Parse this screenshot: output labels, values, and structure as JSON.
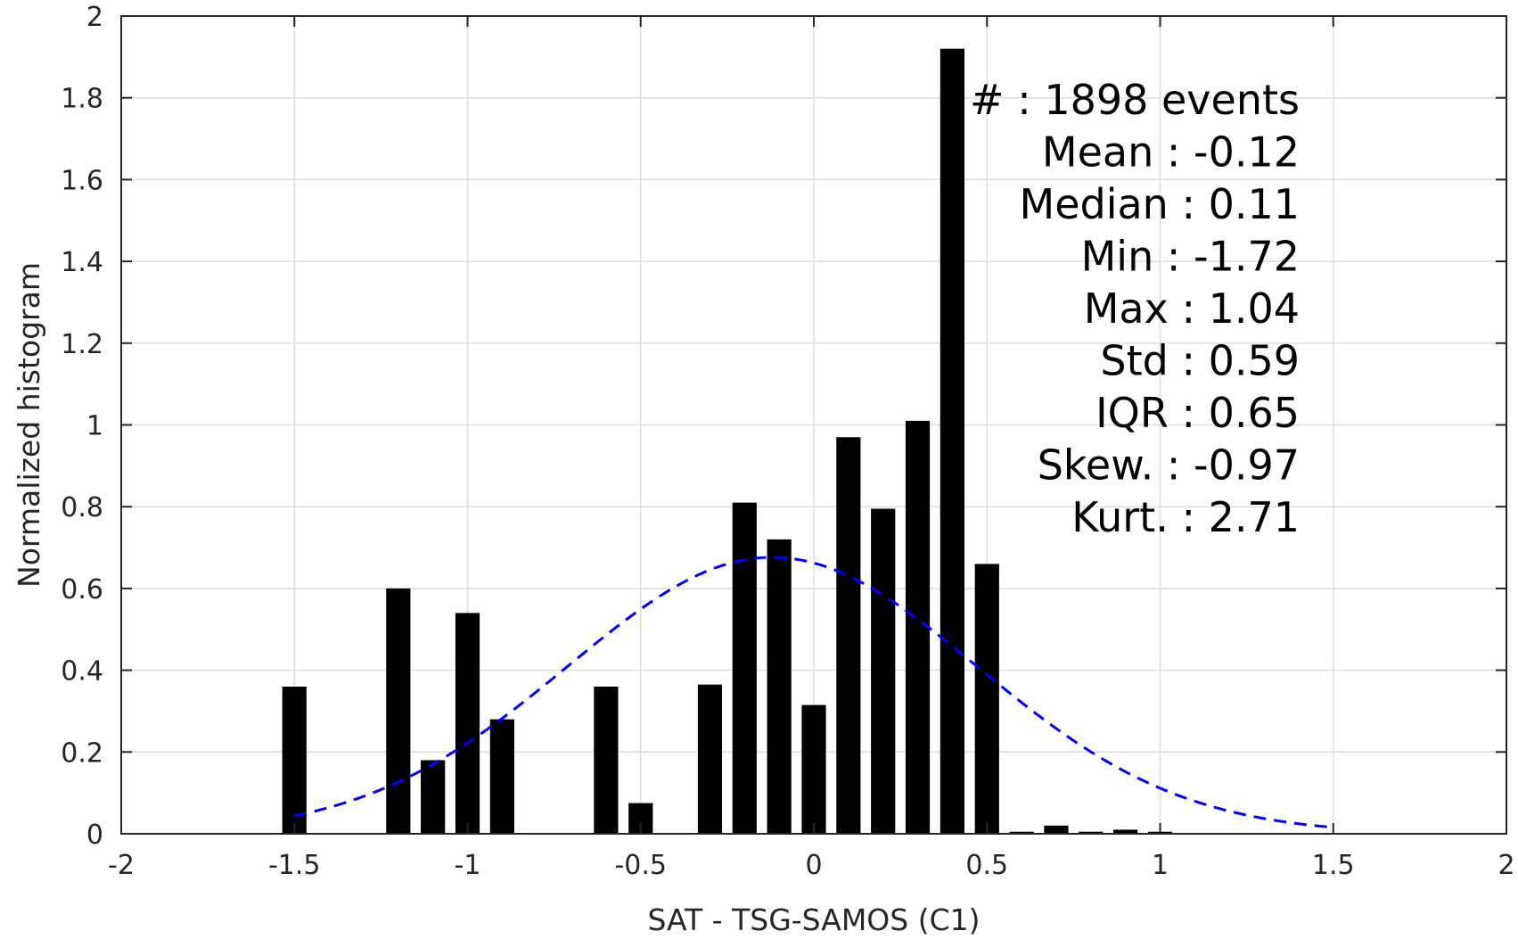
{
  "chart_data": {
    "type": "bar",
    "xlabel": "SAT - TSG-SAMOS (C1)",
    "ylabel": "Normalized histogram",
    "xlim": [
      -2,
      2
    ],
    "ylim": [
      0,
      2
    ],
    "xticks": [
      -2,
      -1.5,
      -1,
      -0.5,
      0,
      0.5,
      1,
      1.5,
      2
    ],
    "xtick_labels": [
      "-2",
      "-1.5",
      "-1",
      "-0.5",
      "0",
      "0.5",
      "1",
      "1.5",
      "2"
    ],
    "yticks": [
      0,
      0.2,
      0.4,
      0.6,
      0.8,
      1,
      1.2,
      1.4,
      1.6,
      1.8,
      2
    ],
    "ytick_labels": [
      "0",
      "0.2",
      "0.4",
      "0.6",
      "0.8",
      "1",
      "1.2",
      "1.4",
      "1.6",
      "1.8",
      "2"
    ],
    "grid": true,
    "bar_width": 0.07,
    "bar_color": "#000000",
    "bins": [
      {
        "x": -1.5,
        "y": 0.36
      },
      {
        "x": -1.2,
        "y": 0.6
      },
      {
        "x": -1.1,
        "y": 0.18
      },
      {
        "x": -1.0,
        "y": 0.54
      },
      {
        "x": -0.9,
        "y": 0.28
      },
      {
        "x": -0.6,
        "y": 0.36
      },
      {
        "x": -0.5,
        "y": 0.075
      },
      {
        "x": -0.3,
        "y": 0.365
      },
      {
        "x": -0.2,
        "y": 0.81
      },
      {
        "x": -0.1,
        "y": 0.72
      },
      {
        "x": 0.0,
        "y": 0.315
      },
      {
        "x": 0.1,
        "y": 0.97
      },
      {
        "x": 0.2,
        "y": 0.795
      },
      {
        "x": 0.3,
        "y": 1.01
      },
      {
        "x": 0.4,
        "y": 1.92
      },
      {
        "x": 0.5,
        "y": 0.66
      },
      {
        "x": 0.6,
        "y": 0.005
      },
      {
        "x": 0.7,
        "y": 0.02
      },
      {
        "x": 0.8,
        "y": 0.005
      },
      {
        "x": 0.9,
        "y": 0.01
      },
      {
        "x": 1.0,
        "y": 0.005
      }
    ],
    "normal_fit": {
      "mean": -0.12,
      "std": 0.59,
      "x_range": [
        -1.5,
        1.5
      ],
      "color": "#0000ff",
      "style": "dashed"
    },
    "stats_box": {
      "lines": [
        "# : 1898 events",
        "Mean : -0.12",
        "Median : 0.11",
        "Min : -1.72",
        "Max : 1.04",
        "Std : 0.59",
        "IQR : 0.65",
        "Skew. : -0.97",
        "Kurt. : 2.71"
      ],
      "placement": "top-right"
    }
  }
}
